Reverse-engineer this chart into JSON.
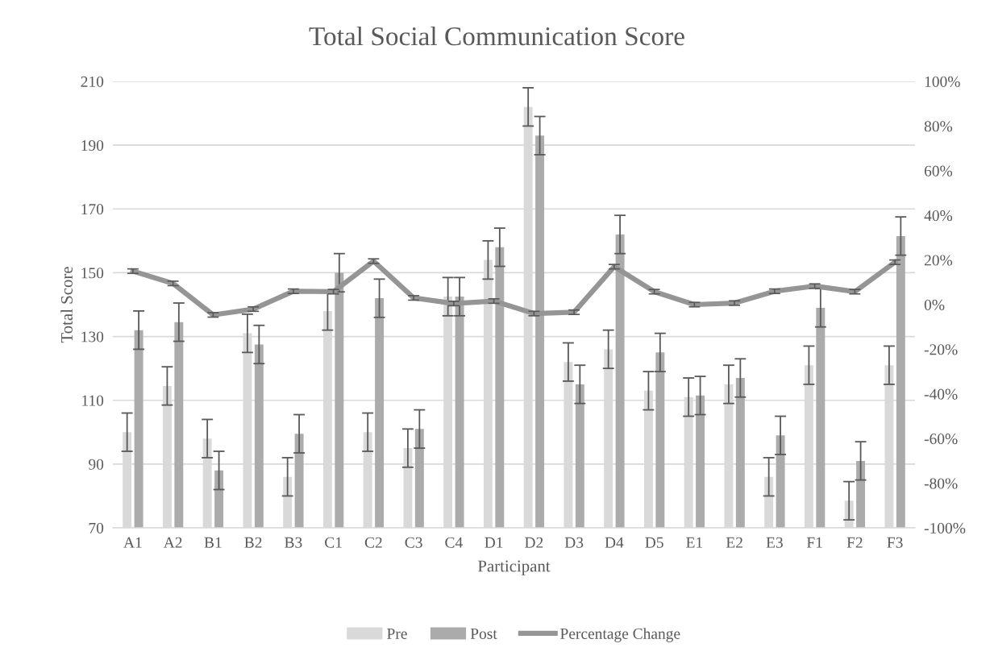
{
  "chart_data": {
    "type": "bar",
    "title": "Total Social Communication Score",
    "xlabel": "Participant",
    "ylabel": "Total Score",
    "categories": [
      "A1",
      "A2",
      "B1",
      "B2",
      "B3",
      "C1",
      "C2",
      "C3",
      "C4",
      "D1",
      "D2",
      "D3",
      "D4",
      "D5",
      "E1",
      "E2",
      "E3",
      "F1",
      "F2",
      "F3"
    ],
    "series": [
      {
        "name": "Pre",
        "color": "#d9d9d9",
        "values": [
          100,
          114.5,
          98,
          131,
          86,
          138,
          100,
          95,
          142.5,
          154,
          202,
          122,
          126,
          113,
          111,
          115,
          86,
          121,
          78.5,
          121
        ],
        "errors": [
          6,
          6,
          6,
          6,
          6,
          6,
          6,
          6,
          6,
          6,
          6,
          6,
          6,
          6,
          6,
          6,
          6,
          6,
          6,
          6
        ]
      },
      {
        "name": "Post",
        "color": "#ababab",
        "values": [
          132,
          134.5,
          88,
          127.5,
          99.5,
          150,
          142,
          101,
          142.5,
          158,
          193,
          115,
          162,
          125,
          111.5,
          117,
          99,
          139,
          91,
          161.5
        ],
        "errors": [
          6,
          6,
          6,
          6,
          6,
          6,
          6,
          6,
          6,
          6,
          6,
          6,
          6,
          6,
          6,
          6,
          6,
          6,
          6,
          6
        ]
      },
      {
        "name": "Percentage Change",
        "type": "line",
        "axis": "y2",
        "color": "#959595",
        "values": [
          15,
          9.5,
          -4.6,
          -2,
          6,
          5.8,
          19.5,
          3,
          0.5,
          1.6,
          -4,
          -3.4,
          17,
          5.8,
          0,
          0.7,
          6,
          8.3,
          5.8,
          19
        ],
        "errors": [
          1,
          1,
          1,
          1,
          1,
          1,
          1,
          1,
          1,
          1,
          1,
          1,
          1,
          1,
          1,
          1,
          1,
          1,
          1,
          1
        ]
      }
    ],
    "ylim": [
      70,
      210
    ],
    "yticks": [
      70,
      90,
      110,
      130,
      150,
      170,
      190,
      210
    ],
    "y2lim": [
      -100,
      100
    ],
    "y2ticks": [
      {
        "value": -100,
        "label": "-100%"
      },
      {
        "value": -80,
        "label": "-80%"
      },
      {
        "value": -60,
        "label": "-60%"
      },
      {
        "value": -40,
        "label": "-40%"
      },
      {
        "value": -20,
        "label": "-20%"
      },
      {
        "value": 0,
        "label": "0%"
      },
      {
        "value": 20,
        "label": "20%"
      },
      {
        "value": 40,
        "label": "40%"
      },
      {
        "value": 60,
        "label": "60%"
      },
      {
        "value": 80,
        "label": "80%"
      },
      {
        "value": 100,
        "label": "100%"
      }
    ],
    "grid": "y",
    "legend": "bottom",
    "marker": "none",
    "line_style": "solid"
  }
}
